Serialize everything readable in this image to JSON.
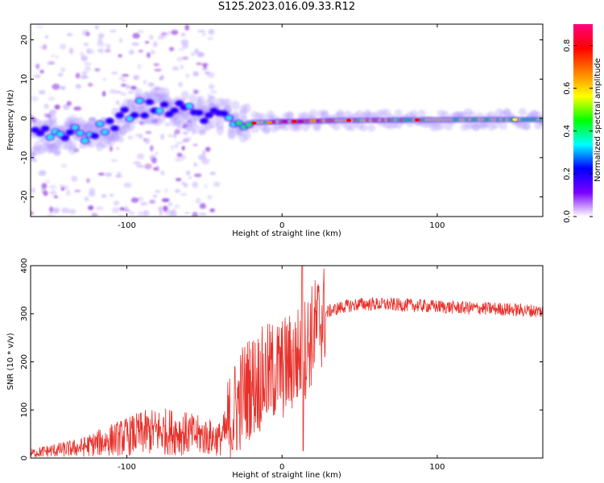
{
  "title": "S125.2023.016.09.33.R12",
  "chart_data": [
    {
      "type": "heatmap",
      "xlabel": "Height of straight line (km)",
      "ylabel": "Frequency (Hz)",
      "xlim": [
        -162,
        168
      ],
      "ylim": [
        -25,
        24
      ],
      "xticks": [
        -100,
        0,
        100
      ],
      "yticks": [
        -20,
        -10,
        0,
        10,
        20
      ],
      "colorbar": {
        "label": "Normalized spectral amplitude",
        "range": [
          0.0,
          0.9
        ],
        "ticks": [
          0.0,
          0.2,
          0.4,
          0.6,
          0.8
        ],
        "tick_labels": [
          "0.0",
          "0.2",
          "0.4",
          "0.6",
          "0.8"
        ],
        "colormap": [
          "#ffffff",
          "#7a00ff",
          "#0000ff",
          "#00ffff",
          "#00ff00",
          "#ffff00",
          "#ff8000",
          "#ff0000",
          "#ff0080"
        ]
      },
      "ridge": [
        {
          "x": -155,
          "f": -4.5,
          "a": 0.25
        },
        {
          "x": -140,
          "f": -4.0,
          "a": 0.3
        },
        {
          "x": -125,
          "f": -4.0,
          "a": 0.3
        },
        {
          "x": -110,
          "f": -2.5,
          "a": 0.28
        },
        {
          "x": -95,
          "f": 2.5,
          "a": 0.25
        },
        {
          "x": -80,
          "f": 3.0,
          "a": 0.25
        },
        {
          "x": -65,
          "f": 2.0,
          "a": 0.25
        },
        {
          "x": -50,
          "f": 1.0,
          "a": 0.26
        },
        {
          "x": -40,
          "f": 0.5,
          "a": 0.26
        },
        {
          "x": -25,
          "f": -1.0,
          "a": 0.45
        },
        {
          "x": -10,
          "f": -1.0,
          "a": 0.6
        },
        {
          "x": 0,
          "f": -0.8,
          "a": 0.75
        },
        {
          "x": 10,
          "f": -0.8,
          "a": 0.7
        },
        {
          "x": 40,
          "f": -0.5,
          "a": 0.6
        },
        {
          "x": 85,
          "f": -0.4,
          "a": 0.55
        },
        {
          "x": 130,
          "f": -0.3,
          "a": 0.5
        },
        {
          "x": 165,
          "f": -0.3,
          "a": 0.5
        }
      ]
    },
    {
      "type": "line",
      "xlabel": "Height of straight line (km)",
      "ylabel": "SNR (10 * v/v)",
      "xlim": [
        -162,
        168
      ],
      "ylim": [
        0,
        400
      ],
      "xticks": [
        -100,
        0,
        100
      ],
      "yticks": [
        0,
        100,
        200,
        300,
        400
      ],
      "color": "#e8302a",
      "series_points": [
        {
          "x": -162,
          "y": 10
        },
        {
          "x": -150,
          "y": 15
        },
        {
          "x": -140,
          "y": 18
        },
        {
          "x": -130,
          "y": 22
        },
        {
          "x": -120,
          "y": 30
        },
        {
          "x": -110,
          "y": 38
        },
        {
          "x": -100,
          "y": 45
        },
        {
          "x": -90,
          "y": 52
        },
        {
          "x": -80,
          "y": 55
        },
        {
          "x": -70,
          "y": 55
        },
        {
          "x": -60,
          "y": 50
        },
        {
          "x": -50,
          "y": 45
        },
        {
          "x": -40,
          "y": 40
        },
        {
          "x": -35,
          "y": 60
        },
        {
          "x": -30,
          "y": 100
        },
        {
          "x": -25,
          "y": 135
        },
        {
          "x": -20,
          "y": 150
        },
        {
          "x": -15,
          "y": 160
        },
        {
          "x": -10,
          "y": 170
        },
        {
          "x": -5,
          "y": 180
        },
        {
          "x": 0,
          "y": 185
        },
        {
          "x": 5,
          "y": 195
        },
        {
          "x": 10,
          "y": 210
        },
        {
          "x": 15,
          "y": 230
        },
        {
          "x": 20,
          "y": 260
        },
        {
          "x": 25,
          "y": 290
        },
        {
          "x": 30,
          "y": 305
        },
        {
          "x": 40,
          "y": 315
        },
        {
          "x": 50,
          "y": 320
        },
        {
          "x": 60,
          "y": 320
        },
        {
          "x": 80,
          "y": 318
        },
        {
          "x": 100,
          "y": 315
        },
        {
          "x": 120,
          "y": 312
        },
        {
          "x": 140,
          "y": 310
        },
        {
          "x": 168,
          "y": 305
        }
      ],
      "spike": {
        "x": 13,
        "y": 400
      }
    }
  ]
}
